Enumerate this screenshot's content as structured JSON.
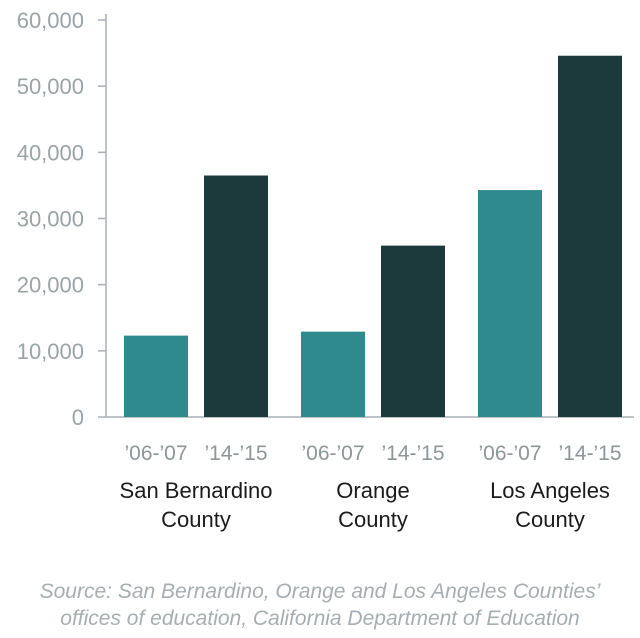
{
  "chart_data": {
    "type": "bar",
    "categories": [
      "San Bernardino County",
      "Orange County",
      "Los Angeles County"
    ],
    "category_lines": [
      [
        "San Bernardino",
        "County"
      ],
      [
        "Orange",
        "County"
      ],
      [
        "Los Angeles",
        "County"
      ]
    ],
    "periods": [
      "’06-’07",
      "’14-’15"
    ],
    "series": [
      {
        "period": "’06-’07",
        "color": "#2e8a8c",
        "values": [
          12300,
          12900,
          34300
        ]
      },
      {
        "period": "’14-’15",
        "color": "#1c3a3c",
        "values": [
          36500,
          25900,
          54600
        ]
      }
    ],
    "yticks": [
      0,
      10000,
      20000,
      30000,
      40000,
      50000,
      60000
    ],
    "ytick_labels": [
      "0",
      "10,000",
      "20,000",
      "30,000",
      "40,000",
      "50,000",
      "60,000"
    ],
    "ylim": [
      0,
      60000
    ],
    "title": "",
    "xlabel": "",
    "ylabel": "",
    "grid": false,
    "axis_color": "#a9b1b4"
  },
  "source": {
    "line1": "Source: San Bernardino, Orange and Los Angeles Counties’",
    "line2": "offices of education, California Department of Education"
  }
}
